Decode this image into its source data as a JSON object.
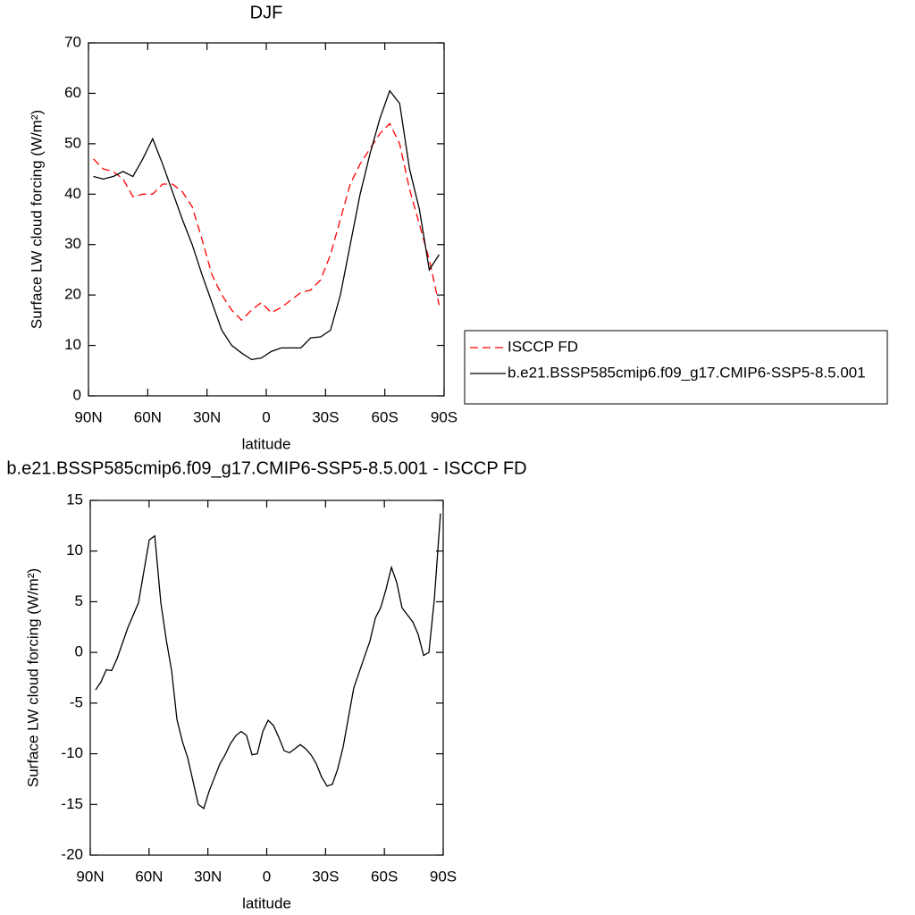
{
  "chart_data": [
    {
      "type": "line",
      "title": "DJF",
      "xlabel": "latitude",
      "ylabel": "Surface LW cloud forcing (W/m²)",
      "x": [
        87.5,
        82.5,
        77.5,
        72.5,
        67.5,
        62.5,
        57.5,
        52.5,
        47.5,
        42.5,
        37.5,
        32.5,
        27.5,
        22.5,
        17.5,
        12.5,
        7.5,
        2.5,
        -2.5,
        -7.5,
        -12.5,
        -17.5,
        -22.5,
        -27.5,
        -32.5,
        -37.5,
        -42.5,
        -47.5,
        -52.5,
        -57.5,
        -62.5,
        -67.5,
        -72.5,
        -77.5,
        -82.5,
        -87.5
      ],
      "series": [
        {
          "name": "ISCCP FD",
          "color": "#ff0000",
          "line_style": "dashed",
          "values": [
            47,
            45,
            44.5,
            43,
            39.5,
            40,
            40,
            42,
            42,
            40.5,
            37.5,
            31,
            24,
            20,
            17,
            15,
            17,
            18.5,
            16.5,
            17.5,
            19,
            20.5,
            21,
            23,
            28,
            35,
            42,
            46,
            49,
            52,
            54,
            50,
            41,
            34,
            27,
            18
          ]
        },
        {
          "name": "b.e21.BSSP585cmip6.f09_g17.CMIP6-SSP5-8.5.001",
          "color": "#000000",
          "line_style": "solid",
          "values": [
            43.5,
            43,
            43.5,
            44.5,
            43.5,
            47,
            51,
            46,
            40.5,
            35,
            30,
            24,
            18.5,
            13,
            10,
            8.5,
            7.2,
            7.5,
            8.8,
            9.5,
            9.5,
            9.5,
            11.5,
            11.7,
            13,
            20,
            30,
            40,
            48,
            55,
            60.5,
            58,
            45,
            37,
            25,
            28
          ]
        }
      ],
      "xlim": [
        90,
        -90
      ],
      "xticks": [
        {
          "value": 90,
          "label": "90N"
        },
        {
          "value": 60,
          "label": "60N"
        },
        {
          "value": 30,
          "label": "30N"
        },
        0,
        {
          "value": -30,
          "label": "30S"
        },
        {
          "value": -60,
          "label": "60S"
        },
        {
          "value": -90,
          "label": "90S"
        }
      ],
      "ylim": [
        0,
        70
      ],
      "yticks": [
        0,
        10,
        20,
        30,
        40,
        50,
        60,
        70
      ],
      "legend": "right"
    },
    {
      "type": "line",
      "title": "b.e21.BSSP585cmip6.f09_g17.CMIP6-SSP5-8.5.001 - ISCCP FD",
      "xlabel": "latitude",
      "ylabel": "Surface LW cloud forcing (W/m²)",
      "x": [
        87.3,
        84.5,
        81.8,
        79.1,
        76.3,
        70.9,
        65.4,
        59.9,
        57.1,
        54.0,
        51.2,
        48.5,
        45.8,
        43.0,
        40.3,
        34.9,
        32.1,
        29.4,
        23.9,
        21.2,
        18.5,
        15.7,
        13.0,
        10.3,
        7.5,
        4.8,
        2.0,
        -0.7,
        -3.4,
        -6.2,
        -8.9,
        -11.6,
        -14.4,
        -17.1,
        -19.8,
        -22.6,
        -25.3,
        -28.0,
        -30.8,
        -33.5,
        -36.2,
        -39.0,
        -44.4,
        -49.9,
        -52.6,
        -55.4,
        -58.1,
        -60.8,
        -63.6,
        -66.3,
        -69.0,
        -74.5,
        -77.2,
        -80.0,
        -82.7,
        -85.5,
        -88.6
      ],
      "color": "#000000",
      "values": [
        -3.7,
        -2.9,
        -1.7,
        -1.8,
        -0.6,
        2.4,
        4.9,
        11.1,
        11.5,
        4.9,
        1.2,
        -1.8,
        -6.6,
        -8.8,
        -10.4,
        -15,
        -15.4,
        -13.7,
        -11,
        -10.1,
        -9,
        -8.2,
        -7.8,
        -8.2,
        -10.1,
        -10,
        -7.8,
        -6.7,
        -7.2,
        -8.4,
        -9.7,
        -9.9,
        -9.5,
        -9.1,
        -9.5,
        -10.1,
        -11,
        -12.3,
        -13.2,
        -13,
        -11.5,
        -9.3,
        -3.5,
        -0.4,
        1.1,
        3.4,
        4.4,
        6.2,
        8.4,
        6.9,
        4.4,
        3,
        1.8,
        -0.3,
        0,
        5.3,
        13.7
      ],
      "xlim": [
        90,
        -90
      ],
      "xticks": [
        {
          "value": 90,
          "label": "90N"
        },
        {
          "value": 60,
          "label": "60N"
        },
        {
          "value": 30,
          "label": "30N"
        },
        0,
        {
          "value": -30,
          "label": "30S"
        },
        {
          "value": -60,
          "label": "60S"
        },
        {
          "value": -90,
          "label": "90S"
        }
      ],
      "ylim": [
        -20,
        15
      ],
      "yticks": [
        -20,
        -15,
        -10,
        -5,
        0,
        5,
        10,
        15
      ]
    }
  ]
}
